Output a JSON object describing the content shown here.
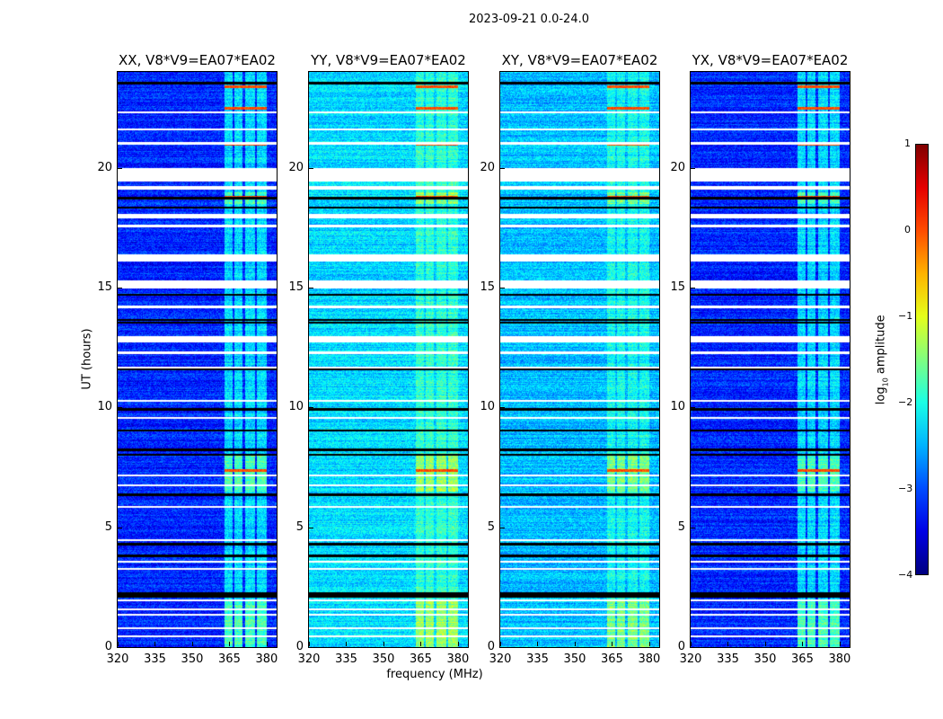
{
  "chart_data": {
    "type": "heatmap",
    "title": "2023-09-21 0.0-24.0",
    "xlabel": "frequency (MHz)",
    "ylabel": "UT (hours)",
    "xlim": [
      320,
      384
    ],
    "ylim": [
      0,
      24
    ],
    "xticks": [
      "320",
      "335",
      "350",
      "365",
      "380"
    ],
    "xtick_values": [
      320,
      335,
      350,
      365,
      380
    ],
    "yticks": [
      "0",
      "5",
      "10",
      "15",
      "20"
    ],
    "ytick_values": [
      0,
      5,
      10,
      15,
      20
    ],
    "colorbar": {
      "label_main": "log",
      "label_sub": "10",
      "label_rest": " amplitude",
      "range": [
        -4,
        1
      ],
      "ticks": [
        "1",
        "0",
        "−1",
        "−2",
        "−3",
        "−4"
      ],
      "tick_values": [
        1,
        0,
        -1,
        -2,
        -3,
        -4
      ],
      "colormap": "jet"
    },
    "panels": [
      {
        "title": "XX, V8*V9=EA07*EA02",
        "base_log_amp": -3.2,
        "noise": 0.35
      },
      {
        "title": "YY, V8*V9=EA07*EA02",
        "base_log_amp": -2.3,
        "noise": 0.35
      },
      {
        "title": "XY, V8*V9=EA07*EA02",
        "base_log_amp": -2.45,
        "noise": 0.35
      },
      {
        "title": "YX, V8*V9=EA07*EA02",
        "base_log_amp": -3.2,
        "noise": 0.35
      }
    ],
    "rfi_band_mhz": [
      363,
      380
    ],
    "rfi_gaps_mhz": [
      366.5,
      370.5,
      375.5
    ],
    "flagged_intervals_hours": [
      [
        19.45,
        20.0
      ],
      [
        19.1,
        19.25
      ],
      [
        17.9,
        18.1
      ],
      [
        17.55,
        17.65
      ],
      [
        16.1,
        16.4
      ],
      [
        15.0,
        15.3
      ],
      [
        14.15,
        14.25
      ],
      [
        12.75,
        13.0
      ],
      [
        12.25,
        12.35
      ],
      [
        11.65,
        11.72
      ],
      [
        10.25,
        10.32
      ],
      [
        9.55,
        9.62
      ],
      [
        7.15,
        7.22
      ],
      [
        6.75,
        6.82
      ],
      [
        5.85,
        5.92
      ],
      [
        4.45,
        4.52
      ],
      [
        3.55,
        3.62
      ],
      [
        3.25,
        3.32
      ],
      [
        1.95,
        2.02
      ],
      [
        1.55,
        1.62
      ],
      [
        1.35,
        1.4
      ],
      [
        0.78,
        0.84
      ],
      [
        0.45,
        0.5
      ],
      [
        21.6,
        21.65
      ],
      [
        21.0,
        21.08
      ],
      [
        22.3,
        22.36
      ]
    ],
    "bad_time_lines_hours": [
      23.55,
      18.76,
      18.35,
      14.72,
      13.67,
      13.56,
      11.61,
      9.93,
      9.06,
      8.24,
      8.05,
      6.37,
      4.31,
      3.82,
      2.25,
      2.13
    ],
    "strong_rfi_times_hours": [
      23.4,
      22.5,
      21.0,
      18.8,
      7.4,
      2.2
    ]
  }
}
